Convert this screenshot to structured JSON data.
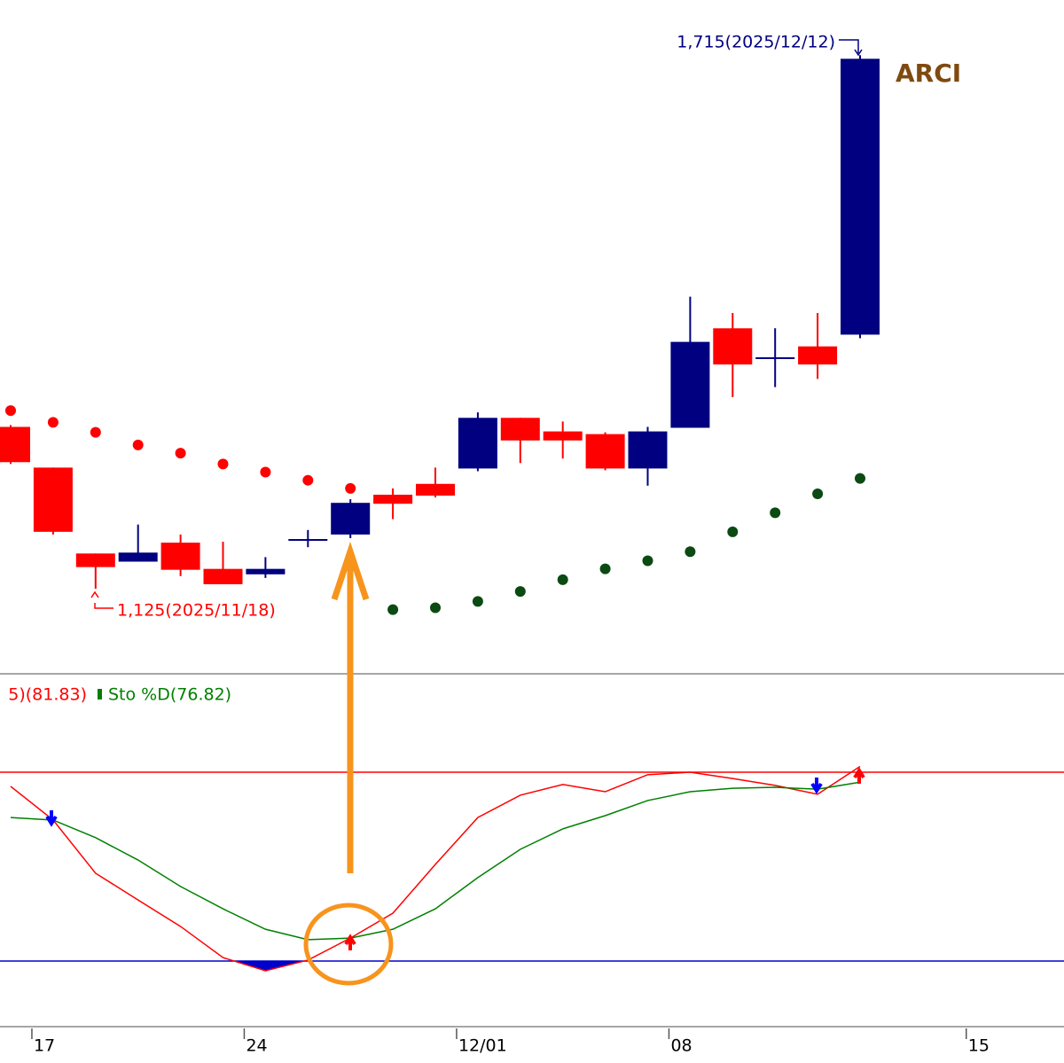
{
  "chart_data": [
    {
      "type": "candlestick",
      "title": "ARCI",
      "annotations": [
        "1,715(2025/12/12)",
        "1,125(2025/11/18)"
      ],
      "open": [
        1304,
        1259,
        1164,
        1155,
        1176,
        1147,
        1141,
        1179,
        1185,
        1229,
        1241,
        1258,
        1314,
        1299,
        1296,
        1258,
        1303,
        1413,
        1380,
        1393,
        1406
      ],
      "high": [
        1306,
        1259,
        1164,
        1196,
        1185,
        1177,
        1160,
        1190,
        1224,
        1236,
        1259,
        1320,
        1314,
        1310,
        1298,
        1304,
        1448,
        1430,
        1413,
        1430,
        1715
      ],
      "low": [
        1263,
        1185,
        1125,
        1155,
        1139,
        1130,
        1137,
        1171,
        1181,
        1202,
        1226,
        1255,
        1264,
        1269,
        1256,
        1239,
        1303,
        1337,
        1348,
        1357,
        1402
      ],
      "close": [
        1265,
        1188,
        1149,
        1165,
        1146,
        1130,
        1147,
        1179,
        1220,
        1219,
        1228,
        1314,
        1289,
        1289,
        1258,
        1299,
        1398,
        1373,
        1380,
        1373,
        1711
      ],
      "up_color": "#000080",
      "down_color": "#ff0000",
      "sar": [
        1322,
        1309,
        1298,
        1284,
        1275,
        1263,
        1254,
        1245,
        1236,
        1102,
        1104,
        1111,
        1122,
        1135,
        1147,
        1156,
        1166,
        1188,
        1209,
        1230,
        1247
      ],
      "sar_above_color": "#ff0000",
      "sar_below_color": "#0b4a12",
      "ylim": [
        1031,
        1776
      ]
    },
    {
      "type": "line",
      "categories": [
        null,
        "17",
        null,
        null,
        null,
        null,
        "24",
        null,
        null,
        null,
        null,
        "12/01",
        null,
        null,
        null,
        null,
        "08",
        null,
        null,
        null,
        null,
        null,
        null,
        "15"
      ],
      "series": [
        {
          "name": "5)(81.83)",
          "color": "#ff0000",
          "values": [
            75.5,
            64.8,
            47.9,
            39.4,
            31.0,
            21.1,
            16.9,
            20.3,
            27.3,
            35.2,
            50.7,
            65.6,
            72.7,
            76.1,
            73.8,
            79.2,
            80.0,
            78.0,
            75.8,
            73.0,
            81.83,
            null,
            null,
            null
          ]
        },
        {
          "name": "Sto %D(76.82)",
          "color": "#008000",
          "values": [
            65.6,
            64.8,
            59.2,
            52.1,
            43.7,
            36.6,
            30.1,
            26.8,
            27.3,
            30.1,
            36.6,
            46.5,
            55.5,
            62.0,
            66.2,
            71.0,
            73.8,
            74.9,
            75.2,
            74.6,
            76.82,
            null,
            null,
            null
          ]
        }
      ],
      "ylim": [
        0,
        100
      ],
      "reference_lines": [
        {
          "value": 80,
          "color": "#ff0000"
        },
        {
          "value": 20,
          "color": "#0000cc"
        }
      ],
      "oversold_fill": "#0000cc"
    }
  ]
}
